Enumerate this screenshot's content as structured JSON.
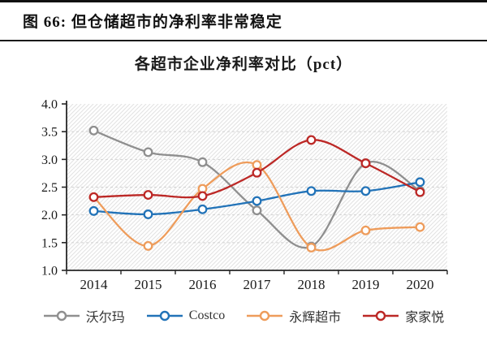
{
  "figure": {
    "caption": "图 66: 但仓储超市的净利率非常稳定"
  },
  "chart_data": {
    "type": "line",
    "title": "各超市企业净利率对比（pct）",
    "unit": "pct",
    "x": [
      "2014",
      "2015",
      "2016",
      "2017",
      "2018",
      "2019",
      "2020"
    ],
    "ylim": [
      1.0,
      4.0
    ],
    "ytick_step": 0.5,
    "yticks": [
      "4.0",
      "3.5",
      "3.0",
      "2.5",
      "2.0",
      "1.5",
      "1.0"
    ],
    "grid": "faint dashed horizontal lines, hatched plot background",
    "legend_position": "bottom",
    "marker_style": "open-circle",
    "line_style": "smoothed",
    "axis_color": "#262626",
    "series": [
      {
        "id": "walmart",
        "name": "沃尔玛",
        "color": "#8F8F8F",
        "values": [
          3.52,
          3.13,
          2.95,
          2.08,
          1.43,
          2.93,
          2.43
        ]
      },
      {
        "id": "costco",
        "name": "Costco",
        "color": "#2273B8",
        "values": [
          2.07,
          2.01,
          2.1,
          2.25,
          2.43,
          2.43,
          2.59
        ]
      },
      {
        "id": "yonghui",
        "name": "永辉超市",
        "color": "#EE9C5B",
        "values": [
          2.32,
          1.44,
          2.47,
          2.9,
          1.41,
          1.72,
          1.78
        ]
      },
      {
        "id": "jiajiayue",
        "name": "家家悦",
        "color": "#BC2826",
        "values": [
          2.32,
          2.36,
          2.34,
          2.76,
          3.35,
          2.93,
          2.41
        ]
      }
    ]
  }
}
